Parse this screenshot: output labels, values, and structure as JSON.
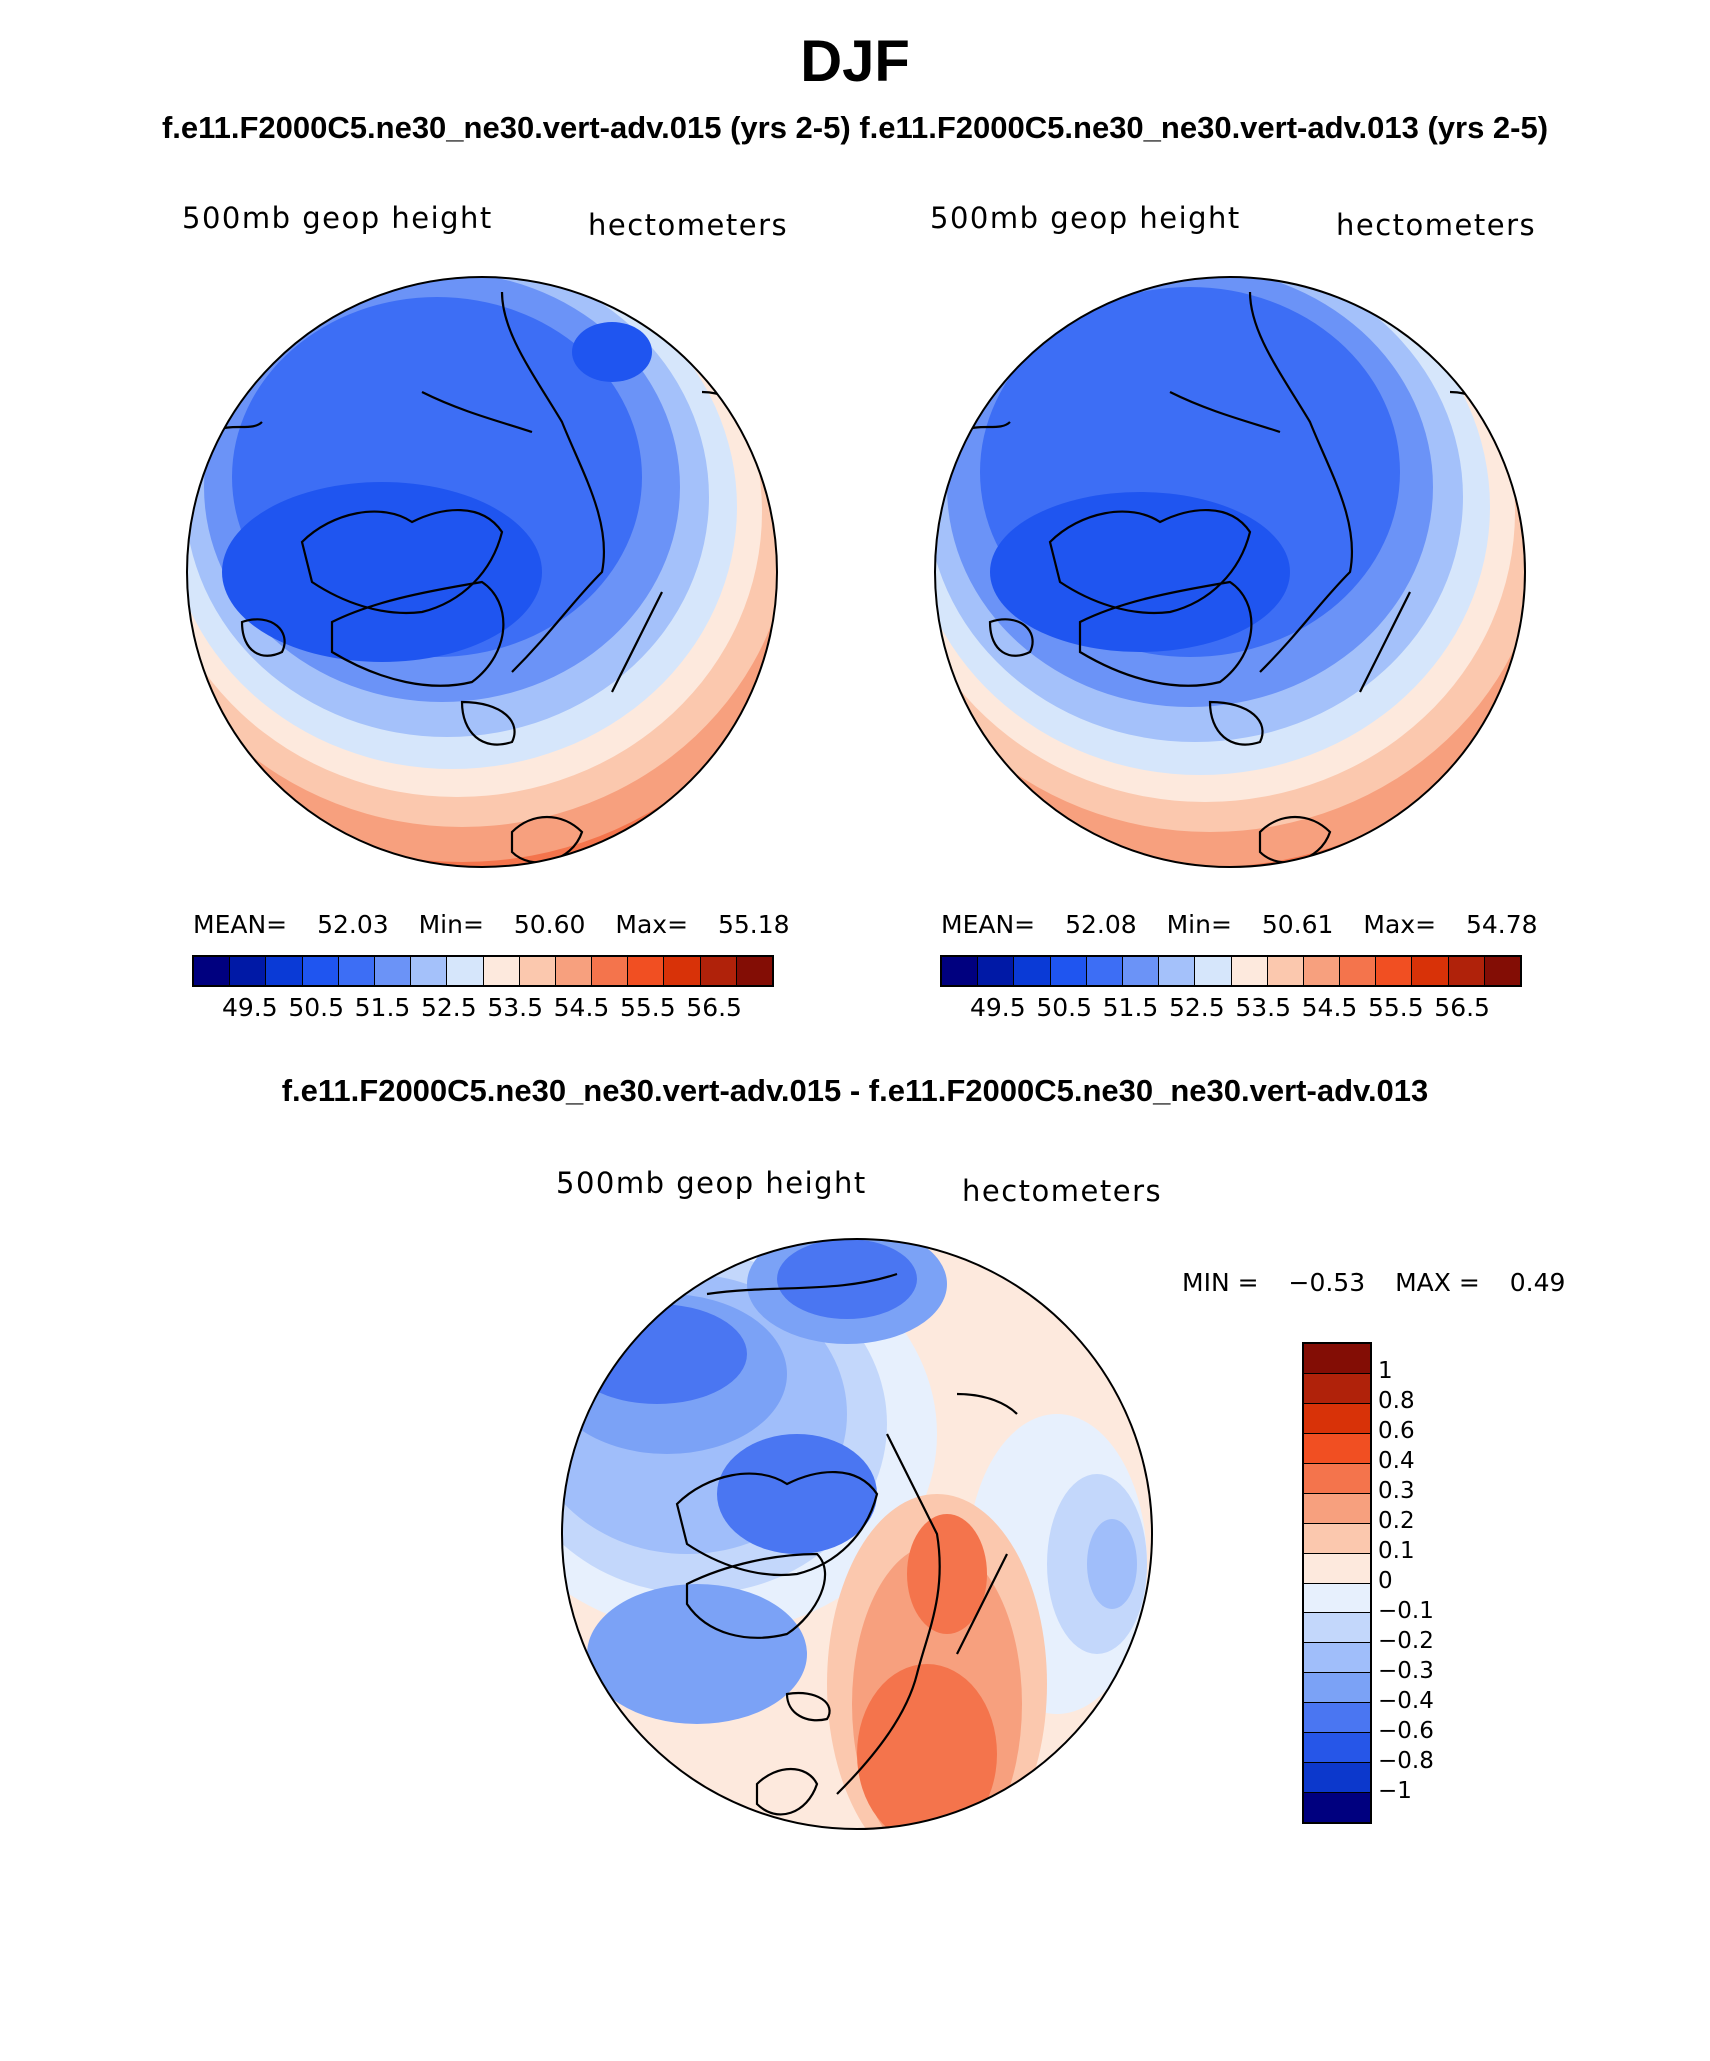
{
  "title": "DJF",
  "panels": {
    "left": {
      "case": "f.e11.F2000C5.ne30_ne30.vert-adv.015 (yrs 2-5)",
      "variable": "500mb geop height",
      "units": "hectometers",
      "stats": {
        "mean_label": "MEAN=",
        "mean": "52.03",
        "min_label": "Min=",
        "min": "50.60",
        "max_label": "Max=",
        "max": "55.18"
      }
    },
    "right": {
      "case": "f.e11.F2000C5.ne30_ne30.vert-adv.013 (yrs 2-5)",
      "variable": "500mb geop height",
      "units": "hectometers",
      "stats": {
        "mean_label": "MEAN=",
        "mean": "52.08",
        "min_label": "Min=",
        "min": "50.61",
        "max_label": "Max=",
        "max": "54.78"
      }
    },
    "diff": {
      "case": "f.e11.F2000C5.ne30_ne30.vert-adv.015 - f.e11.F2000C5.ne30_ne30.vert-adv.013",
      "variable": "500mb geop height",
      "units": "hectometers",
      "stats": {
        "min_label": "MIN =",
        "min": "−0.53",
        "max_label": "MAX =",
        "max": "0.49"
      }
    }
  },
  "colorbars": {
    "abs": {
      "colors": [
        "#00007f",
        "#0019a6",
        "#0a3ad6",
        "#1f55f0",
        "#3d6ef5",
        "#6b93f7",
        "#a4c1fa",
        "#d6e6fb",
        "#fde9dd",
        "#fbc8ae",
        "#f7a07e",
        "#f4744c",
        "#f14f22",
        "#d83208",
        "#b0220a",
        "#830d05"
      ],
      "ticks": [
        "49.5",
        "50.5",
        "51.5",
        "52.5",
        "53.5",
        "54.5",
        "55.5",
        "56.5"
      ]
    },
    "diff": {
      "colors": [
        "#830d05",
        "#b0220a",
        "#d83208",
        "#f14f22",
        "#f4744c",
        "#f7a07e",
        "#fbc8ae",
        "#fde9dd",
        "#e7f0fd",
        "#c3d7fb",
        "#a0befa",
        "#7ba2f6",
        "#4a76f2",
        "#2656e8",
        "#0c38cc",
        "#00007f"
      ],
      "ticks": [
        "1",
        "0.8",
        "0.6",
        "0.4",
        "0.3",
        "0.2",
        "0.1",
        "0",
        "−0.1",
        "−0.2",
        "−0.3",
        "−0.4",
        "−0.6",
        "−0.8",
        "−1"
      ]
    }
  }
}
